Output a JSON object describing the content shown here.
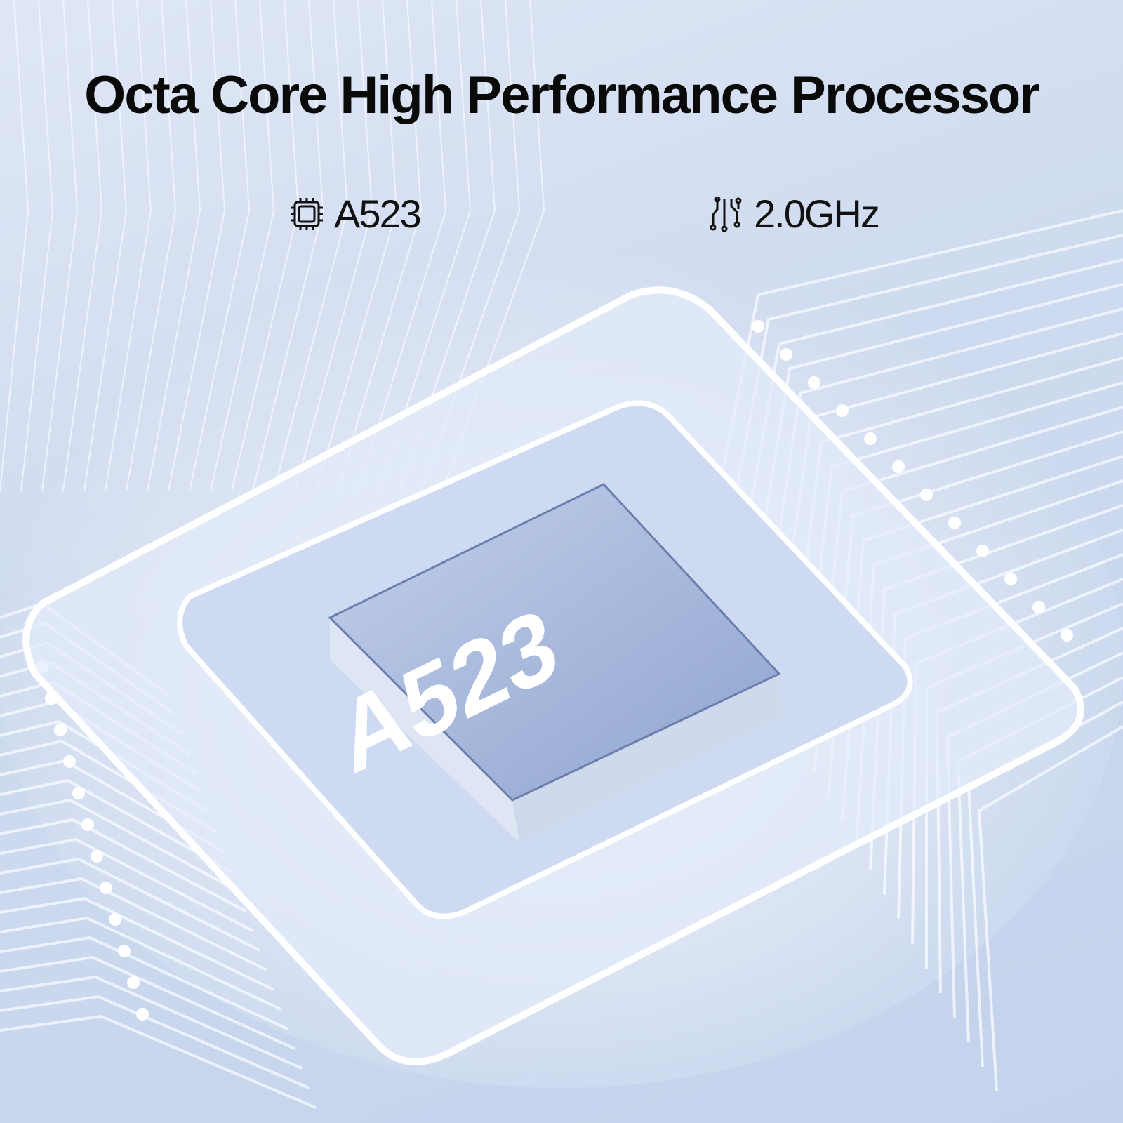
{
  "headline": "Octa Core High Performance Processor",
  "specs": [
    {
      "icon": "cpu-chip-icon",
      "label": "A523"
    },
    {
      "icon": "circuit-icon",
      "label": "2.0GHz"
    }
  ],
  "chip_label": "A523",
  "colors": {
    "background": "#cfdbef",
    "chip": "#9fb2d8",
    "accent": "#ffffff",
    "text": "#0a0a0a"
  }
}
